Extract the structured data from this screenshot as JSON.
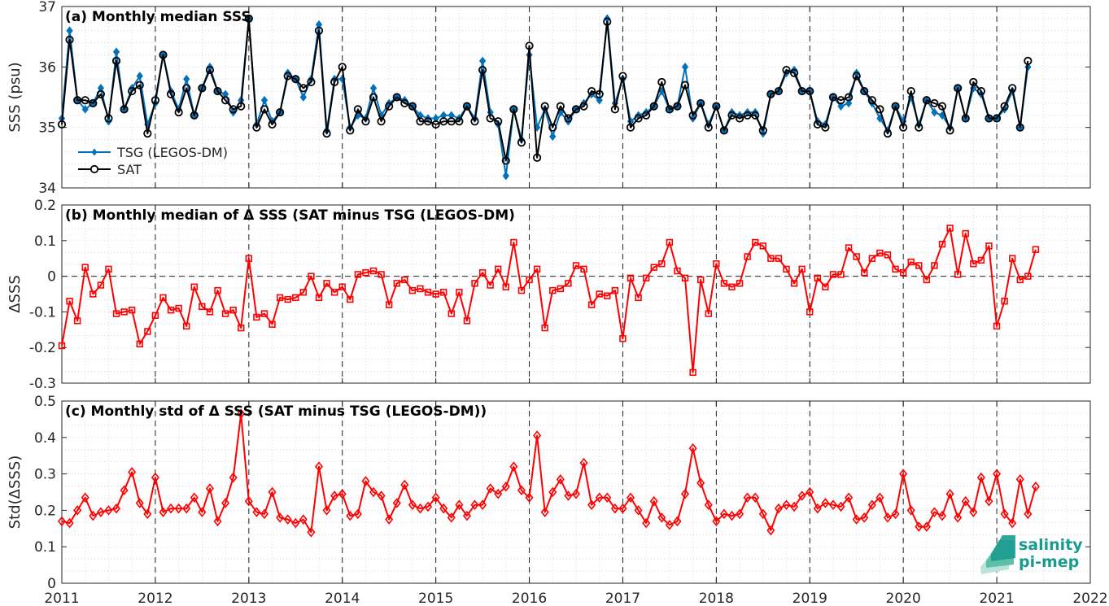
{
  "chart_data": [
    {
      "type": "line",
      "title": "(a) Monthly median SSS",
      "ylabel": "SSS (psu)",
      "ylim": [
        34,
        37
      ],
      "yticks": [
        34,
        35,
        36,
        37
      ],
      "xlim": [
        2011,
        2022
      ],
      "xticks": [
        2011,
        2012,
        2013,
        2014,
        2015,
        2016,
        2017,
        2018,
        2019,
        2020,
        2021,
        2022
      ],
      "legend_position": "bottom-left",
      "grid": true,
      "series": [
        {
          "name": "TSG (LEGOS-DM)",
          "color": "#0072BD",
          "marker": "diamond",
          "start": 2011.0,
          "step": 0.08333,
          "values": [
            35.15,
            36.6,
            35.45,
            35.3,
            35.4,
            35.65,
            35.1,
            36.25,
            35.3,
            35.65,
            35.85,
            35.05,
            35.4,
            36.2,
            35.6,
            35.3,
            35.8,
            35.2,
            35.65,
            36.0,
            35.6,
            35.55,
            35.25,
            35.45,
            36.8,
            35.05,
            35.45,
            35.1,
            35.25,
            35.9,
            35.8,
            35.5,
            35.8,
            36.7,
            34.95,
            35.8,
            35.8,
            35.0,
            35.2,
            35.15,
            35.65,
            35.2,
            35.4,
            35.5,
            35.45,
            35.35,
            35.2,
            35.15,
            35.15,
            35.2,
            35.2,
            35.15,
            35.35,
            35.15,
            36.1,
            35.25,
            35.05,
            34.2,
            35.3,
            34.8,
            36.2,
            35.0,
            35.3,
            34.85,
            35.25,
            35.1,
            35.3,
            35.4,
            35.55,
            35.45,
            36.8,
            35.4,
            35.8,
            35.1,
            35.2,
            35.25,
            35.35,
            35.6,
            35.3,
            35.35,
            36.0,
            35.15,
            35.4,
            35.05,
            35.35,
            34.95,
            35.25,
            35.2,
            35.25,
            35.25,
            34.9,
            35.55,
            35.6,
            35.9,
            35.95,
            35.6,
            35.6,
            35.1,
            35.05,
            35.5,
            35.35,
            35.4,
            35.9,
            35.6,
            35.4,
            35.15,
            34.95,
            35.35,
            35.1,
            35.5,
            35.05,
            35.45,
            35.25,
            35.2,
            35.0,
            35.65,
            35.15,
            35.65,
            35.55,
            35.15,
            35.15,
            35.3,
            35.6,
            35.0,
            36.0
          ]
        },
        {
          "name": "SAT",
          "color": "#000000",
          "marker": "circle",
          "start": 2011.0,
          "step": 0.08333,
          "values": [
            35.05,
            36.45,
            35.45,
            35.45,
            35.4,
            35.55,
            35.15,
            36.1,
            35.3,
            35.6,
            35.7,
            34.9,
            35.45,
            36.2,
            35.55,
            35.25,
            35.65,
            35.2,
            35.65,
            35.95,
            35.6,
            35.45,
            35.3,
            35.35,
            36.8,
            35.0,
            35.3,
            35.05,
            35.25,
            35.85,
            35.8,
            35.65,
            35.75,
            36.6,
            34.9,
            35.75,
            36.0,
            34.95,
            35.3,
            35.1,
            35.5,
            35.1,
            35.35,
            35.5,
            35.4,
            35.35,
            35.1,
            35.1,
            35.05,
            35.1,
            35.1,
            35.1,
            35.35,
            35.1,
            35.95,
            35.15,
            35.1,
            34.45,
            35.3,
            34.75,
            36.35,
            34.5,
            35.35,
            35.0,
            35.35,
            35.15,
            35.3,
            35.35,
            35.6,
            35.55,
            36.75,
            35.3,
            35.85,
            35.0,
            35.15,
            35.2,
            35.35,
            35.75,
            35.3,
            35.35,
            35.7,
            35.2,
            35.4,
            35.0,
            35.35,
            34.95,
            35.2,
            35.15,
            35.2,
            35.2,
            34.95,
            35.55,
            35.6,
            35.95,
            35.9,
            35.6,
            35.6,
            35.05,
            35.0,
            35.5,
            35.45,
            35.5,
            35.85,
            35.6,
            35.45,
            35.3,
            34.9,
            35.35,
            35.0,
            35.6,
            35.0,
            35.45,
            35.4,
            35.35,
            34.95,
            35.65,
            35.15,
            35.75,
            35.6,
            35.15,
            35.15,
            35.35,
            35.65,
            35.0,
            36.1
          ]
        }
      ]
    },
    {
      "type": "line",
      "title": "(b) Monthly median of Δ SSS (SAT minus TSG (LEGOS-DM)",
      "ylabel": "ΔSSS",
      "ylim": [
        -0.3,
        0.2
      ],
      "yticks": [
        -0.3,
        -0.2,
        -0.1,
        0,
        0.1,
        0.2
      ],
      "yticklabels": [
        "-0.3",
        "-0.2",
        "-0.1",
        "0",
        "0.1",
        "0.2"
      ],
      "xlim": [
        2011,
        2022
      ],
      "xticks": [
        2011,
        2012,
        2013,
        2014,
        2015,
        2016,
        2017,
        2018,
        2019,
        2020,
        2021,
        2022
      ],
      "zero_line": true,
      "grid": true,
      "series": [
        {
          "color": "#FF0000",
          "marker": "square",
          "start": 2011.0,
          "step": 0.08333,
          "values": [
            -0.195,
            -0.07,
            -0.125,
            0.025,
            -0.05,
            -0.025,
            0.02,
            -0.105,
            -0.1,
            -0.095,
            -0.19,
            -0.155,
            -0.11,
            -0.06,
            -0.095,
            -0.09,
            -0.14,
            -0.03,
            -0.085,
            -0.1,
            -0.04,
            -0.105,
            -0.095,
            -0.145,
            0.05,
            -0.115,
            -0.105,
            -0.135,
            -0.06,
            -0.065,
            -0.06,
            -0.045,
            0.0,
            -0.06,
            -0.02,
            -0.045,
            -0.03,
            -0.065,
            0.005,
            0.01,
            0.015,
            0.005,
            -0.08,
            -0.02,
            -0.01,
            -0.04,
            -0.035,
            -0.045,
            -0.05,
            -0.045,
            -0.105,
            -0.045,
            -0.125,
            -0.02,
            0.01,
            -0.025,
            0.02,
            -0.03,
            0.095,
            -0.04,
            -0.01,
            0.02,
            -0.145,
            -0.04,
            -0.035,
            -0.02,
            0.03,
            0.02,
            -0.08,
            -0.05,
            -0.055,
            -0.04,
            -0.175,
            -0.005,
            -0.06,
            -0.005,
            0.025,
            0.035,
            0.095,
            0.015,
            -0.005,
            -0.27,
            -0.01,
            -0.105,
            0.035,
            -0.02,
            -0.03,
            -0.02,
            0.055,
            0.095,
            0.085,
            0.05,
            0.05,
            0.02,
            -0.02,
            0.02,
            -0.1,
            -0.005,
            -0.03,
            0.005,
            0.005,
            0.08,
            0.055,
            0.01,
            0.05,
            0.065,
            0.06,
            0.02,
            0.01,
            0.04,
            0.03,
            -0.01,
            0.03,
            0.09,
            0.135,
            0.005,
            0.12,
            0.035,
            0.045,
            0.085,
            -0.14,
            -0.07,
            0.05,
            -0.01,
            0.0,
            0.075
          ]
        }
      ]
    },
    {
      "type": "line",
      "title": "(c) Monthly std of Δ SSS (SAT minus TSG (LEGOS-DM))",
      "ylabel": "Std(ΔSSS)",
      "ylim": [
        0,
        0.5
      ],
      "yticks": [
        0,
        0.1,
        0.2,
        0.3,
        0.4,
        0.5
      ],
      "yticklabels": [
        "0",
        "0.1",
        "0.2",
        "0.3",
        "0.4",
        "0.5"
      ],
      "xlim": [
        2011,
        2022
      ],
      "xticks": [
        2011,
        2012,
        2013,
        2014,
        2015,
        2016,
        2017,
        2018,
        2019,
        2020,
        2021,
        2022
      ],
      "grid": true,
      "series": [
        {
          "color": "#FF0000",
          "marker": "diamond",
          "start": 2011.0,
          "step": 0.08333,
          "values": [
            0.17,
            0.165,
            0.2,
            0.235,
            0.185,
            0.195,
            0.2,
            0.205,
            0.255,
            0.305,
            0.22,
            0.19,
            0.29,
            0.195,
            0.205,
            0.205,
            0.205,
            0.235,
            0.195,
            0.26,
            0.17,
            0.22,
            0.29,
            0.465,
            0.225,
            0.195,
            0.19,
            0.25,
            0.18,
            0.175,
            0.165,
            0.175,
            0.14,
            0.32,
            0.2,
            0.24,
            0.245,
            0.185,
            0.19,
            0.28,
            0.25,
            0.24,
            0.175,
            0.22,
            0.27,
            0.215,
            0.205,
            0.21,
            0.235,
            0.205,
            0.18,
            0.215,
            0.185,
            0.215,
            0.215,
            0.26,
            0.245,
            0.265,
            0.32,
            0.255,
            0.235,
            0.405,
            0.195,
            0.25,
            0.285,
            0.24,
            0.245,
            0.33,
            0.215,
            0.235,
            0.235,
            0.205,
            0.205,
            0.235,
            0.2,
            0.165,
            0.225,
            0.18,
            0.16,
            0.17,
            0.245,
            0.37,
            0.275,
            0.215,
            0.17,
            0.19,
            0.185,
            0.19,
            0.235,
            0.235,
            0.19,
            0.145,
            0.205,
            0.215,
            0.21,
            0.24,
            0.25,
            0.205,
            0.22,
            0.215,
            0.21,
            0.235,
            0.175,
            0.18,
            0.215,
            0.235,
            0.18,
            0.19,
            0.3,
            0.2,
            0.155,
            0.155,
            0.195,
            0.185,
            0.245,
            0.18,
            0.225,
            0.195,
            0.29,
            0.225,
            0.3,
            0.19,
            0.165,
            0.285,
            0.19,
            0.265
          ]
        }
      ]
    }
  ],
  "xticklabels": [
    "2011",
    "2012",
    "2013",
    "2014",
    "2015",
    "2016",
    "2017",
    "2018",
    "2019",
    "2020",
    "2021",
    "2022"
  ],
  "vertical_dashed_years": [
    2012,
    2013,
    2014,
    2015,
    2016,
    2017,
    2018,
    2019,
    2020,
    2021
  ],
  "logo": {
    "line1": "salinity",
    "line2": "pi-mep",
    "color": "#1a9b8f"
  }
}
